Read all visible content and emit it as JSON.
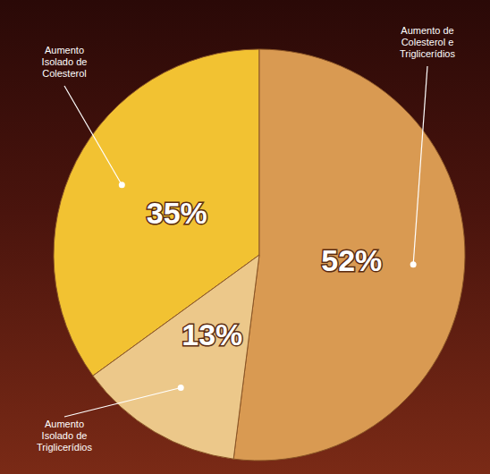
{
  "chart_data": {
    "type": "pie",
    "categories": [
      "Aumento Isolado de Colesterol",
      "Aumento de Colesterol e Triglicerídios",
      "Aumento Isolado de Triglicerídios"
    ],
    "values": [
      35,
      52,
      13
    ],
    "value_labels": [
      "35%",
      "52%",
      "13%"
    ],
    "data_labels": true,
    "colors": [
      "#f2c232",
      "#d99a52",
      "#ecc88a"
    ]
  }
}
